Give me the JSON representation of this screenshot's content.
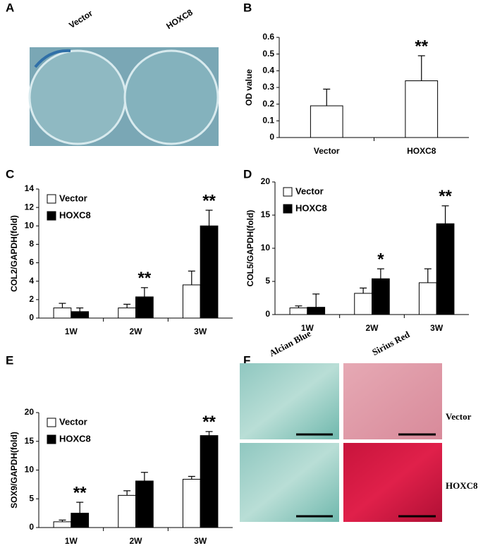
{
  "panel_labels": [
    "A",
    "B",
    "C",
    "D",
    "E",
    "F"
  ],
  "photo_a": {
    "labels": [
      "Vector",
      "HOXC8"
    ]
  },
  "photo_f": {
    "columns": [
      "Alcian Blue",
      "Sirius Red"
    ],
    "rows": [
      "Vector",
      "HOXC8"
    ]
  },
  "chart_data": [
    {
      "type": "bar",
      "categories": [
        "Vector",
        "HOXC8"
      ],
      "values": [
        0.19,
        0.34
      ],
      "errors": [
        0.1,
        0.15
      ],
      "color": "#ffffff",
      "significance": [
        null,
        "**"
      ],
      "ylabel": "OD value",
      "ylim": [
        0,
        0.6
      ],
      "yticks": [
        0,
        0.1,
        0.2,
        0.3,
        0.4,
        0.5,
        0.6
      ]
    },
    {
      "type": "bar",
      "categories": [
        "1W",
        "2W",
        "3W"
      ],
      "ylabel": "COL2/GAPDH(fold)",
      "ylim": [
        0,
        14
      ],
      "yticks": [
        0,
        2,
        4,
        6,
        8,
        10,
        12,
        14
      ],
      "series": [
        {
          "name": "Vector",
          "color": "#ffffff",
          "values": [
            1.1,
            1.1,
            3.6
          ],
          "errors": [
            0.5,
            0.4,
            1.5
          ]
        },
        {
          "name": "HOXC8",
          "color": "#000000",
          "values": [
            0.7,
            2.3,
            10.0
          ],
          "errors": [
            0.4,
            1.0,
            1.7
          ],
          "significance": [
            null,
            "**",
            "**"
          ]
        }
      ]
    },
    {
      "type": "bar",
      "categories": [
        "1W",
        "2W",
        "3W"
      ],
      "ylabel": "COL5/GAPDH(fold)",
      "ylim": [
        0,
        20
      ],
      "yticks": [
        0,
        5,
        10,
        15,
        20
      ],
      "series": [
        {
          "name": "Vector",
          "color": "#ffffff",
          "values": [
            1.0,
            3.2,
            4.8
          ],
          "errors": [
            0.3,
            0.8,
            2.1
          ]
        },
        {
          "name": "HOXC8",
          "color": "#000000",
          "values": [
            1.1,
            5.4,
            13.7
          ],
          "errors": [
            2.0,
            1.5,
            2.7
          ],
          "significance": [
            null,
            "*",
            "**"
          ]
        }
      ]
    },
    {
      "type": "bar",
      "categories": [
        "1W",
        "2W",
        "3W"
      ],
      "ylabel": "SOX9/GAPDH(fold)",
      "ylim": [
        0,
        20
      ],
      "yticks": [
        0,
        5,
        10,
        15,
        20
      ],
      "series": [
        {
          "name": "Vector",
          "color": "#ffffff",
          "values": [
            1.0,
            5.6,
            8.4
          ],
          "errors": [
            0.3,
            0.8,
            0.5
          ]
        },
        {
          "name": "HOXC8",
          "color": "#000000",
          "values": [
            2.5,
            8.1,
            16.0
          ],
          "errors": [
            1.9,
            1.5,
            0.7
          ],
          "significance": [
            "**",
            null,
            "**"
          ]
        }
      ]
    }
  ]
}
